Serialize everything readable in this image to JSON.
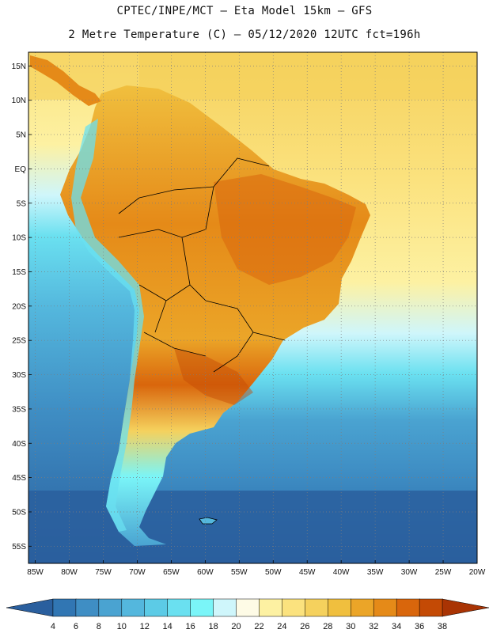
{
  "header": {
    "line1": "CPTEC/INPE/MCT –  Eta Model 15km – GFS",
    "line2": "2 Metre Temperature (C) – 05/12/2020 12UTC fct=196h"
  },
  "lat_labels": [
    "15N",
    "10N",
    "5N",
    "EQ",
    "5S",
    "10S",
    "15S",
    "20S",
    "25S",
    "30S",
    "35S",
    "40S",
    "45S",
    "50S",
    "55S"
  ],
  "lat_values": [
    15,
    10,
    5,
    0,
    -5,
    -10,
    -15,
    -20,
    -25,
    -30,
    -35,
    -40,
    -45,
    -50,
    -55
  ],
  "lon_labels": [
    "85W",
    "80W",
    "75W",
    "70W",
    "65W",
    "60W",
    "55W",
    "50W",
    "45W",
    "40W",
    "35W",
    "30W",
    "25W",
    "20W"
  ],
  "lon_values": [
    -85,
    -80,
    -75,
    -70,
    -65,
    -60,
    -55,
    -50,
    -45,
    -40,
    -35,
    -30,
    -25,
    -20
  ],
  "map_extent": {
    "lon_min": -86,
    "lon_max": -20,
    "lat_min": -57.5,
    "lat_max": 17
  },
  "colorbar": {
    "labels": [
      "4",
      "6",
      "8",
      "10",
      "12",
      "14",
      "16",
      "18",
      "20",
      "22",
      "24",
      "26",
      "28",
      "30",
      "32",
      "34",
      "36",
      "38"
    ],
    "colors": [
      "#2a5f9e",
      "#3176b3",
      "#3f8ec4",
      "#4aa3d1",
      "#54b7dd",
      "#5ccbe6",
      "#6ae0f0",
      "#7af5f8",
      "#cff6fb",
      "#fefbe6",
      "#fdf1a2",
      "#fbe27e",
      "#f5d15d",
      "#f0bf3e",
      "#eba528",
      "#e58a18",
      "#d9660c",
      "#c44a05",
      "#a93404"
    ]
  },
  "colors": {
    "ocean_warm": "#fdf1a2",
    "land_hot": "#e58a18",
    "ocean_cold": "#2a5f9e",
    "border": "#000000"
  },
  "icons": {
    "left_arrow": "colorbar-left-triangle",
    "right_arrow": "colorbar-right-triangle"
  }
}
